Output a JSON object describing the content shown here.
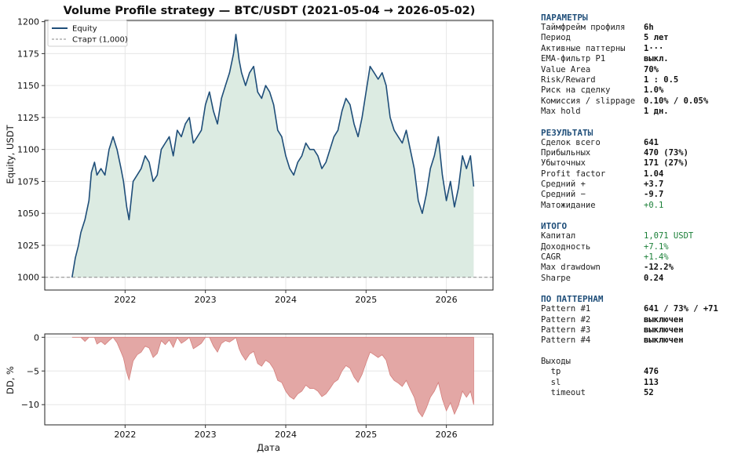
{
  "colors": {
    "equity_line": "#1f4e79",
    "equity_fill": "#dcebe2",
    "drawdown_fill": "#e3a7a5",
    "drawdown_edge": "#d47f7c",
    "start_line": "#888888",
    "accent": "#1f4e79",
    "positive": "#1a7f37"
  },
  "chart_data": [
    {
      "type": "line",
      "title": "Volume Profile strategy — BTC/USDT   (2021-05-04 → 2026-05-02)",
      "ylabel": "Equity, USDT",
      "xlabel": "",
      "ylim": [
        990,
        1201
      ],
      "x_ticks": [
        "2022",
        "2023",
        "2024",
        "2025",
        "2026"
      ],
      "y_ticks": [
        "1000",
        "1025",
        "1050",
        "1075",
        "1100",
        "1125",
        "1150",
        "1175",
        "1200"
      ],
      "legend_location": "top-left",
      "grid": true,
      "series": [
        {
          "name": "Equity",
          "x": [
            2021.34,
            2021.38,
            2021.42,
            2021.45,
            2021.5,
            2021.55,
            2021.58,
            2021.62,
            2021.65,
            2021.7,
            2021.75,
            2021.8,
            2021.85,
            2021.9,
            2021.95,
            2021.98,
            2022.02,
            2022.05,
            2022.1,
            2022.15,
            2022.2,
            2022.25,
            2022.3,
            2022.35,
            2022.4,
            2022.45,
            2022.5,
            2022.55,
            2022.6,
            2022.65,
            2022.7,
            2022.75,
            2022.8,
            2022.85,
            2022.9,
            2022.95,
            2023.0,
            2023.05,
            2023.1,
            2023.15,
            2023.2,
            2023.25,
            2023.3,
            2023.35,
            2023.38,
            2023.42,
            2023.45,
            2023.5,
            2023.55,
            2023.6,
            2023.65,
            2023.7,
            2023.75,
            2023.8,
            2023.85,
            2023.9,
            2023.95,
            2024.0,
            2024.05,
            2024.1,
            2024.15,
            2024.2,
            2024.25,
            2024.3,
            2024.35,
            2024.4,
            2024.45,
            2024.5,
            2024.55,
            2024.6,
            2024.65,
            2024.7,
            2024.75,
            2024.8,
            2024.85,
            2024.9,
            2024.95,
            2025.0,
            2025.05,
            2025.1,
            2025.15,
            2025.2,
            2025.25,
            2025.3,
            2025.35,
            2025.4,
            2025.45,
            2025.5,
            2025.55,
            2025.6,
            2025.65,
            2025.7,
            2025.75,
            2025.8,
            2025.85,
            2025.9,
            2025.95,
            2026.0,
            2026.05,
            2026.1,
            2026.15,
            2026.2,
            2026.25,
            2026.3,
            2026.34
          ],
          "values": [
            1000,
            1015,
            1025,
            1035,
            1045,
            1060,
            1082,
            1090,
            1080,
            1085,
            1080,
            1100,
            1110,
            1100,
            1085,
            1075,
            1055,
            1045,
            1075,
            1080,
            1085,
            1095,
            1090,
            1075,
            1080,
            1100,
            1105,
            1110,
            1095,
            1115,
            1110,
            1120,
            1125,
            1105,
            1110,
            1115,
            1135,
            1145,
            1130,
            1120,
            1140,
            1150,
            1160,
            1175,
            1190,
            1170,
            1160,
            1150,
            1160,
            1165,
            1145,
            1140,
            1150,
            1145,
            1135,
            1115,
            1110,
            1095,
            1085,
            1080,
            1090,
            1095,
            1105,
            1100,
            1100,
            1095,
            1085,
            1090,
            1100,
            1110,
            1115,
            1130,
            1140,
            1135,
            1120,
            1110,
            1125,
            1145,
            1165,
            1160,
            1155,
            1160,
            1150,
            1125,
            1115,
            1110,
            1105,
            1115,
            1100,
            1085,
            1060,
            1050,
            1065,
            1085,
            1095,
            1110,
            1080,
            1060,
            1075,
            1055,
            1070,
            1095,
            1085,
            1095,
            1071
          ]
        },
        {
          "name": "Старт (1,000)",
          "x": [
            2021.34,
            2026.34
          ],
          "values": [
            1000,
            1000
          ]
        }
      ]
    },
    {
      "type": "area",
      "title": "",
      "ylabel": "DD, %",
      "xlabel": "Дата",
      "ylim": [
        -13,
        0.5
      ],
      "x_ticks": [
        "2022",
        "2023",
        "2024",
        "2025",
        "2026"
      ],
      "y_ticks": [
        "0",
        "−5",
        "−10"
      ],
      "grid": true,
      "series": [
        {
          "name": "",
          "x": [
            2021.34,
            2021.38,
            2021.42,
            2021.45,
            2021.5,
            2021.55,
            2021.58,
            2021.62,
            2021.65,
            2021.7,
            2021.75,
            2021.8,
            2021.85,
            2021.9,
            2021.95,
            2021.98,
            2022.02,
            2022.05,
            2022.1,
            2022.15,
            2022.2,
            2022.25,
            2022.3,
            2022.35,
            2022.4,
            2022.45,
            2022.5,
            2022.55,
            2022.6,
            2022.65,
            2022.7,
            2022.75,
            2022.8,
            2022.85,
            2022.9,
            2022.95,
            2023.0,
            2023.05,
            2023.1,
            2023.15,
            2023.2,
            2023.25,
            2023.3,
            2023.35,
            2023.38,
            2023.42,
            2023.45,
            2023.5,
            2023.55,
            2023.6,
            2023.65,
            2023.7,
            2023.75,
            2023.8,
            2023.85,
            2023.9,
            2023.95,
            2024.0,
            2024.05,
            2024.1,
            2024.15,
            2024.2,
            2024.25,
            2024.3,
            2024.35,
            2024.4,
            2024.45,
            2024.5,
            2024.55,
            2024.6,
            2024.65,
            2024.7,
            2024.75,
            2024.8,
            2024.85,
            2024.9,
            2024.95,
            2025.0,
            2025.05,
            2025.1,
            2025.15,
            2025.2,
            2025.25,
            2025.3,
            2025.35,
            2025.4,
            2025.45,
            2025.5,
            2025.55,
            2025.6,
            2025.65,
            2025.7,
            2025.75,
            2025.8,
            2025.85,
            2025.9,
            2025.95,
            2026.0,
            2026.05,
            2026.1,
            2026.15,
            2026.2,
            2026.25,
            2026.3,
            2026.34
          ],
          "values": [
            0,
            0,
            0,
            0,
            -0.6,
            0,
            0,
            0,
            -1.0,
            -0.6,
            -1.1,
            -0.5,
            0,
            -0.8,
            -2.2,
            -3.1,
            -5.2,
            -6.3,
            -3.5,
            -2.6,
            -2.2,
            -1.3,
            -1.6,
            -3.0,
            -2.4,
            -0.5,
            -1.1,
            -0.4,
            -1.5,
            0,
            -0.9,
            -0.5,
            0,
            -1.7,
            -1.3,
            -0.9,
            0,
            0,
            -1.3,
            -2.2,
            -0.9,
            -0.5,
            -0.7,
            -0.3,
            0,
            -1.7,
            -2.5,
            -3.4,
            -2.5,
            -2.1,
            -3.9,
            -4.3,
            -3.4,
            -3.8,
            -4.7,
            -6.4,
            -6.7,
            -8.0,
            -8.8,
            -9.2,
            -8.4,
            -8.0,
            -7.1,
            -7.6,
            -7.6,
            -8.0,
            -8.8,
            -8.4,
            -7.6,
            -6.7,
            -6.3,
            -5.0,
            -4.2,
            -4.6,
            -5.9,
            -6.7,
            -5.5,
            -3.8,
            -2.2,
            -2.6,
            -3.0,
            -2.6,
            -3.4,
            -5.6,
            -6.4,
            -6.8,
            -7.3,
            -6.4,
            -7.7,
            -8.9,
            -11.0,
            -11.8,
            -10.5,
            -8.9,
            -8.0,
            -6.7,
            -9.2,
            -10.9,
            -9.7,
            -11.4,
            -10.1,
            -8.0,
            -8.9,
            -8.0,
            -10.0
          ]
        }
      ]
    }
  ],
  "sidebar": {
    "params": {
      "title": "ПАРАМЕТРЫ",
      "rows": [
        {
          "label": "Таймфрейм профиля",
          "value": "6h"
        },
        {
          "label": "Период",
          "value": "5 лет"
        },
        {
          "label": "Активные паттерны",
          "value": "1···"
        },
        {
          "label": "EMA-фильтр P1",
          "value": "выкл."
        },
        {
          "label": "Value Area",
          "value": "70%"
        },
        {
          "label": "Risk/Reward",
          "value": "1 : 0.5"
        },
        {
          "label": "Риск на сделку",
          "value": "1.0%"
        },
        {
          "label": "Комиссия / slippage",
          "value": "0.10% / 0.05%"
        },
        {
          "label": "Max hold",
          "value": "1 дн."
        }
      ]
    },
    "results": {
      "title": "РЕЗУЛЬТАТЫ",
      "rows": [
        {
          "label": "Сделок всего",
          "value": "641"
        },
        {
          "label": "Прибыльных",
          "value": "470 (73%)"
        },
        {
          "label": "Убыточных",
          "value": "171 (27%)"
        },
        {
          "label": "Profit factor",
          "value": "1.04"
        },
        {
          "label": "Средний +",
          "value": "+3.7"
        },
        {
          "label": "Средний −",
          "value": "-9.7"
        },
        {
          "label": "Матожидание",
          "value": "+0.1",
          "positive": true
        }
      ]
    },
    "total": {
      "title": "ИТОГО",
      "rows": [
        {
          "label": "Капитал",
          "value": "1,071 USDT",
          "positive": true
        },
        {
          "label": "Доходность",
          "value": "+7.1%",
          "positive": true
        },
        {
          "label": "CAGR",
          "value": "+1.4%",
          "positive": true
        },
        {
          "label": "Max drawdown",
          "value": "-12.2%"
        },
        {
          "label": "Sharpe",
          "value": "0.24"
        }
      ]
    },
    "patterns": {
      "title": "ПО ПАТТЕРНАМ",
      "rows": [
        {
          "label": "Pattern #1",
          "value": "641 / 73% / +71"
        },
        {
          "label": "Pattern #2",
          "value": "выключен"
        },
        {
          "label": "Pattern #3",
          "value": "выключен"
        },
        {
          "label": "Pattern #4",
          "value": "выключен"
        }
      ]
    },
    "exits": {
      "title": "Выходы",
      "rows": [
        {
          "label": "  tp",
          "value": "476"
        },
        {
          "label": "  sl",
          "value": "113"
        },
        {
          "label": "  timeout",
          "value": "52"
        }
      ]
    }
  }
}
